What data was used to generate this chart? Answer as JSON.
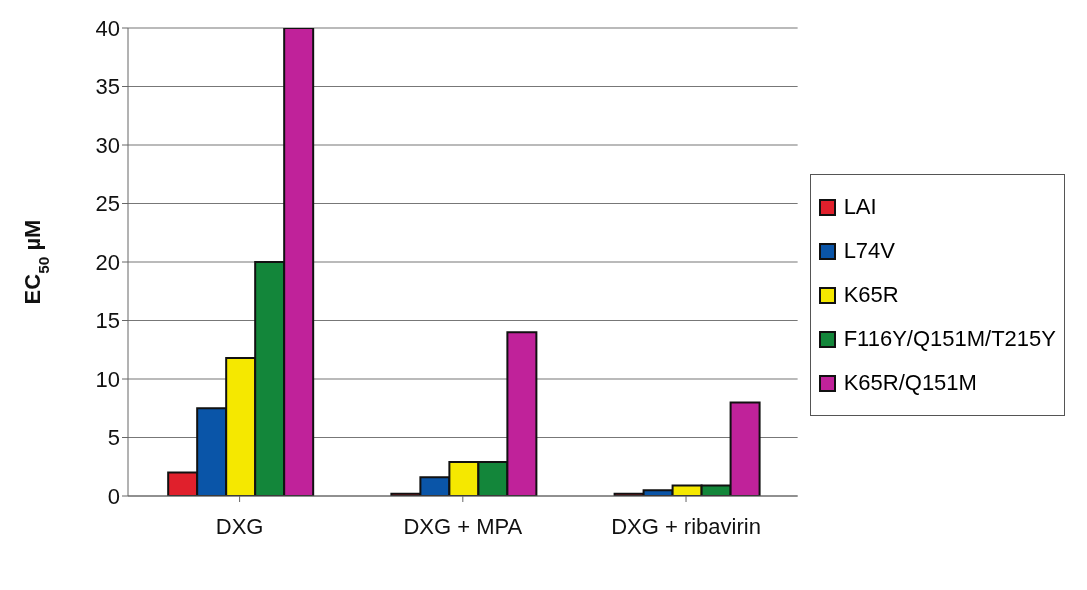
{
  "chart_data": {
    "type": "bar",
    "ylabel": "EC$_{50}$ µM",
    "categories": [
      "DXG",
      "DXG + MPA",
      "DXG + ribavirin"
    ],
    "series": [
      {
        "name": "LAI",
        "color": "#e0202c",
        "values": [
          2,
          0.2,
          0.2
        ]
      },
      {
        "name": "L74V",
        "color": "#0a55a8",
        "values": [
          7.5,
          1.6,
          0.5
        ]
      },
      {
        "name": "K65R",
        "color": "#f5e800",
        "values": [
          11.8,
          2.9,
          0.9
        ]
      },
      {
        "name": "F116Y/Q151M/T215Y",
        "color": "#13863a",
        "values": [
          20,
          2.9,
          0.9
        ]
      },
      {
        "name": "K65R/Q151M",
        "color": "#c0229a",
        "values": [
          40,
          14,
          8
        ]
      }
    ],
    "ylim": [
      0,
      40
    ],
    "yticks": [
      0,
      5,
      10,
      15,
      20,
      25,
      30,
      35,
      40
    ],
    "grid": "y",
    "legend": "right"
  }
}
